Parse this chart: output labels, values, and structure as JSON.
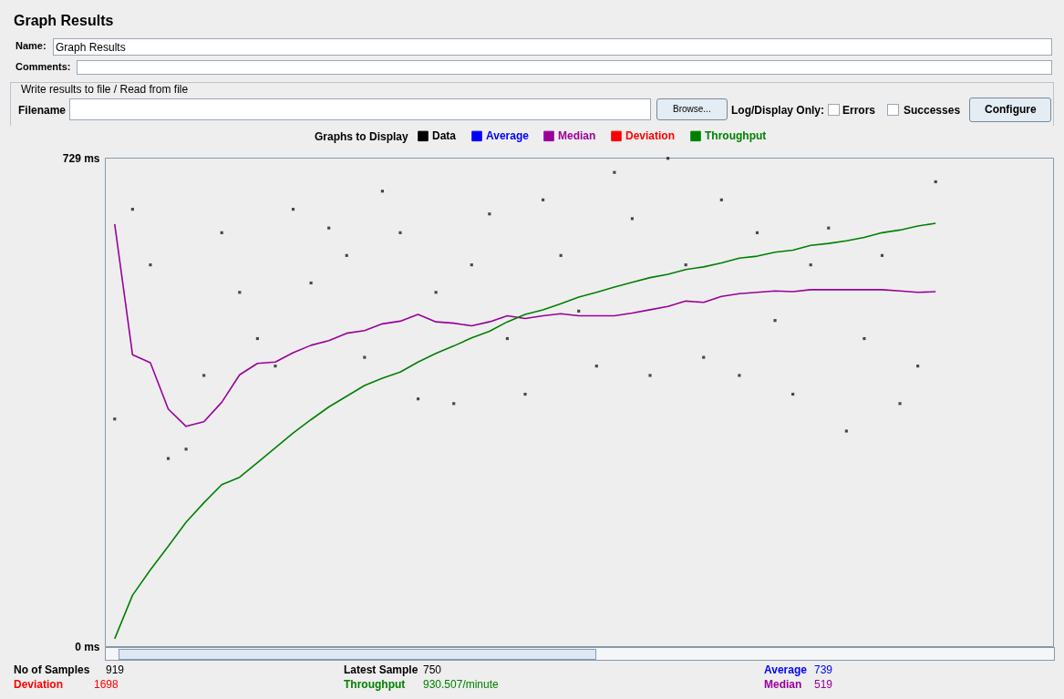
{
  "chart_data": {
    "type": "line",
    "title": "Graph Results",
    "legend_title": "Graphs to Display",
    "legend": "top",
    "grid": false,
    "categories": [
      null,
      null,
      null,
      null,
      null,
      null,
      null,
      null,
      null,
      null,
      null,
      null,
      null,
      null,
      null,
      null,
      null,
      null,
      null,
      null,
      null,
      null,
      null,
      null,
      null,
      null,
      null,
      null,
      null,
      null,
      null,
      null,
      null,
      null,
      null,
      null,
      null,
      null,
      null,
      null,
      null,
      null,
      null,
      null,
      null,
      null,
      null
    ],
    "ylim": [
      0,
      729
    ],
    "yticks": [
      {
        "value": 0,
        "label": "0  ms"
      },
      {
        "value": 729,
        "label": "729  ms"
      }
    ],
    "series": [
      {
        "name": "Data",
        "type": "scatter",
        "marker": "square",
        "color": "#000000",
        "values": [
          339,
          652,
          569,
          280,
          294,
          404,
          617,
          528,
          459,
          418,
          652,
          542,
          624,
          583,
          431,
          679,
          617,
          369,
          528,
          362,
          569,
          645,
          459,
          376,
          666,
          583,
          500,
          418,
          707,
          638,
          404,
          728,
          569,
          431,
          666,
          404,
          617,
          486,
          376,
          569,
          624,
          321,
          459,
          583,
          362,
          418,
          693
        ]
      },
      {
        "name": "Average",
        "color": "#0000ff",
        "values": [
          null,
          null,
          null,
          null,
          null,
          null,
          null,
          null,
          null,
          null,
          null,
          null,
          null,
          null,
          null,
          null,
          null,
          null,
          null,
          null,
          null,
          null,
          null,
          null,
          null,
          null,
          null,
          null,
          null,
          null,
          null,
          null,
          null,
          null,
          null,
          null,
          null,
          null,
          null,
          null,
          null,
          null,
          null,
          null,
          null,
          null,
          null
        ]
      },
      {
        "name": "Median",
        "color": "#990099",
        "values": [
          630,
          435,
          423,
          354,
          328,
          335,
          364,
          405,
          422,
          424,
          438,
          449,
          456,
          467,
          471,
          481,
          485,
          495,
          484,
          482,
          478,
          484,
          493,
          489,
          493,
          496,
          493,
          493,
          493,
          497,
          502,
          507,
          515,
          513,
          522,
          526,
          528,
          530,
          529,
          532,
          532,
          532,
          532,
          532,
          530,
          528,
          529
        ]
      },
      {
        "name": "Deviation",
        "color": "#ff0000",
        "values": [
          null,
          null,
          null,
          null,
          null,
          null,
          null,
          null,
          null,
          null,
          null,
          null,
          null,
          null,
          null,
          null,
          null,
          null,
          null,
          null,
          null,
          null,
          null,
          null,
          null,
          null,
          null,
          null,
          null,
          null,
          null,
          null,
          null,
          null,
          null,
          null,
          null,
          null,
          null,
          null,
          null,
          null,
          null,
          null,
          null,
          null,
          null
        ]
      },
      {
        "name": "Throughput",
        "color": "#008000",
        "values": [
          11,
          76,
          114,
          149,
          185,
          214,
          241,
          252,
          274,
          296,
          318,
          338,
          357,
          373,
          389,
          400,
          409,
          424,
          437,
          448,
          460,
          470,
          484,
          495,
          502,
          511,
          521,
          528,
          536,
          543,
          550,
          555,
          562,
          566,
          572,
          579,
          582,
          588,
          591,
          598,
          601,
          605,
          610,
          617,
          621,
          627,
          631
        ]
      }
    ],
    "annotations": [
      "Name:",
      "Graph Results",
      "Comments:",
      "Write results to file / Read from file",
      "Filename",
      "Browse...",
      "Log/Display Only:",
      "Errors",
      "Successes",
      "Configure",
      "No of Samples",
      "919",
      "Latest Sample",
      "750",
      "Average",
      "739",
      "Deviation",
      "1698",
      "Throughput",
      "930.507/minute",
      "Median",
      "519"
    ]
  }
}
